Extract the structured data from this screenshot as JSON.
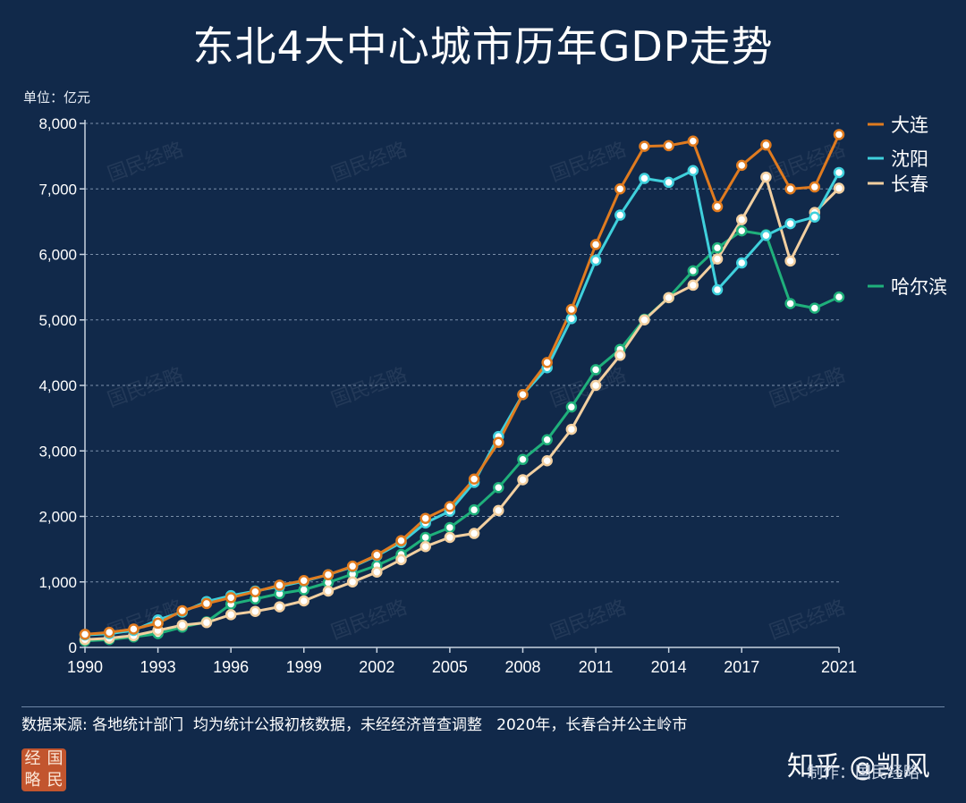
{
  "title": "东北4大中心城市历年GDP走势",
  "unit_label": "单位：亿元",
  "watermark": "国民经略",
  "source_note": "数据来源: 各地统计部门  均为统计公报初核数据，未经经济普查调整   2020年，长春合并公主岭市",
  "logo_chars": [
    "经",
    "国",
    "略",
    "民"
  ],
  "zhihu_mark": "知乎 @凯风",
  "credit": "制作：国民经略",
  "chart_data": {
    "type": "line",
    "title": "东北4大中心城市历年GDP走势",
    "ylabel": "单位：亿元",
    "xlabel": "",
    "x": [
      1990,
      1991,
      1992,
      1993,
      1994,
      1995,
      1996,
      1997,
      1998,
      1999,
      2000,
      2001,
      2002,
      2003,
      2004,
      2005,
      2006,
      2007,
      2008,
      2009,
      2010,
      2011,
      2012,
      2013,
      2014,
      2015,
      2016,
      2017,
      2018,
      2019,
      2020,
      2021
    ],
    "xticks": [
      "1990",
      "1993",
      "1996",
      "1999",
      "2002",
      "2005",
      "2008",
      "2011",
      "2014",
      "2017",
      "2021"
    ],
    "xtick_values": [
      1990,
      1993,
      1996,
      1999,
      2002,
      2005,
      2008,
      2011,
      2014,
      2017,
      2021
    ],
    "ylim": [
      0,
      8000
    ],
    "yticks": [
      0,
      1000,
      2000,
      3000,
      4000,
      5000,
      6000,
      7000,
      8000
    ],
    "ytick_labels": [
      "0",
      "1,000",
      "2,000",
      "3,000",
      "4,000",
      "5,000",
      "6,000",
      "7,000",
      "8,000"
    ],
    "grid": "horizontal dashed",
    "legend_placement": "right",
    "series": [
      {
        "name": "大连",
        "color": "#e07b1f",
        "values": [
          200,
          230,
          280,
          370,
          560,
          670,
          760,
          850,
          950,
          1020,
          1110,
          1240,
          1410,
          1630,
          1970,
          2150,
          2570,
          3130,
          3860,
          4350,
          5160,
          6150,
          7000,
          7650,
          7660,
          7730,
          6730,
          7360,
          7670,
          7000,
          7030,
          7830
        ]
      },
      {
        "name": "沈阳",
        "color": "#3fd0dc",
        "values": [
          190,
          210,
          260,
          420,
          540,
          700,
          790,
          860,
          930,
          1010,
          1110,
          1230,
          1400,
          1600,
          1900,
          2080,
          2520,
          3220,
          3860,
          4270,
          5020,
          5910,
          6600,
          7160,
          7100,
          7280,
          5460,
          5870,
          6290,
          6470,
          6570,
          7250
        ]
      },
      {
        "name": "长春",
        "color": "#f2cfa0",
        "values": [
          120,
          140,
          180,
          260,
          340,
          380,
          500,
          550,
          620,
          710,
          860,
          1000,
          1150,
          1340,
          1540,
          1680,
          1740,
          2090,
          2560,
          2850,
          3330,
          4000,
          4460,
          5000,
          5340,
          5530,
          5930,
          6530,
          7180,
          5900,
          6640,
          7010
        ]
      },
      {
        "name": "哈尔滨",
        "color": "#1fb07b",
        "values": [
          100,
          120,
          160,
          210,
          310,
          390,
          660,
          740,
          820,
          880,
          990,
          1120,
          1250,
          1420,
          1680,
          1830,
          2100,
          2440,
          2870,
          3170,
          3670,
          4240,
          4550,
          5010,
          5340,
          5750,
          6100,
          6360,
          6300,
          5250,
          5180,
          5350
        ]
      }
    ],
    "legend_order": [
      "大连",
      "沈阳",
      "长春",
      "哈尔滨"
    ]
  }
}
